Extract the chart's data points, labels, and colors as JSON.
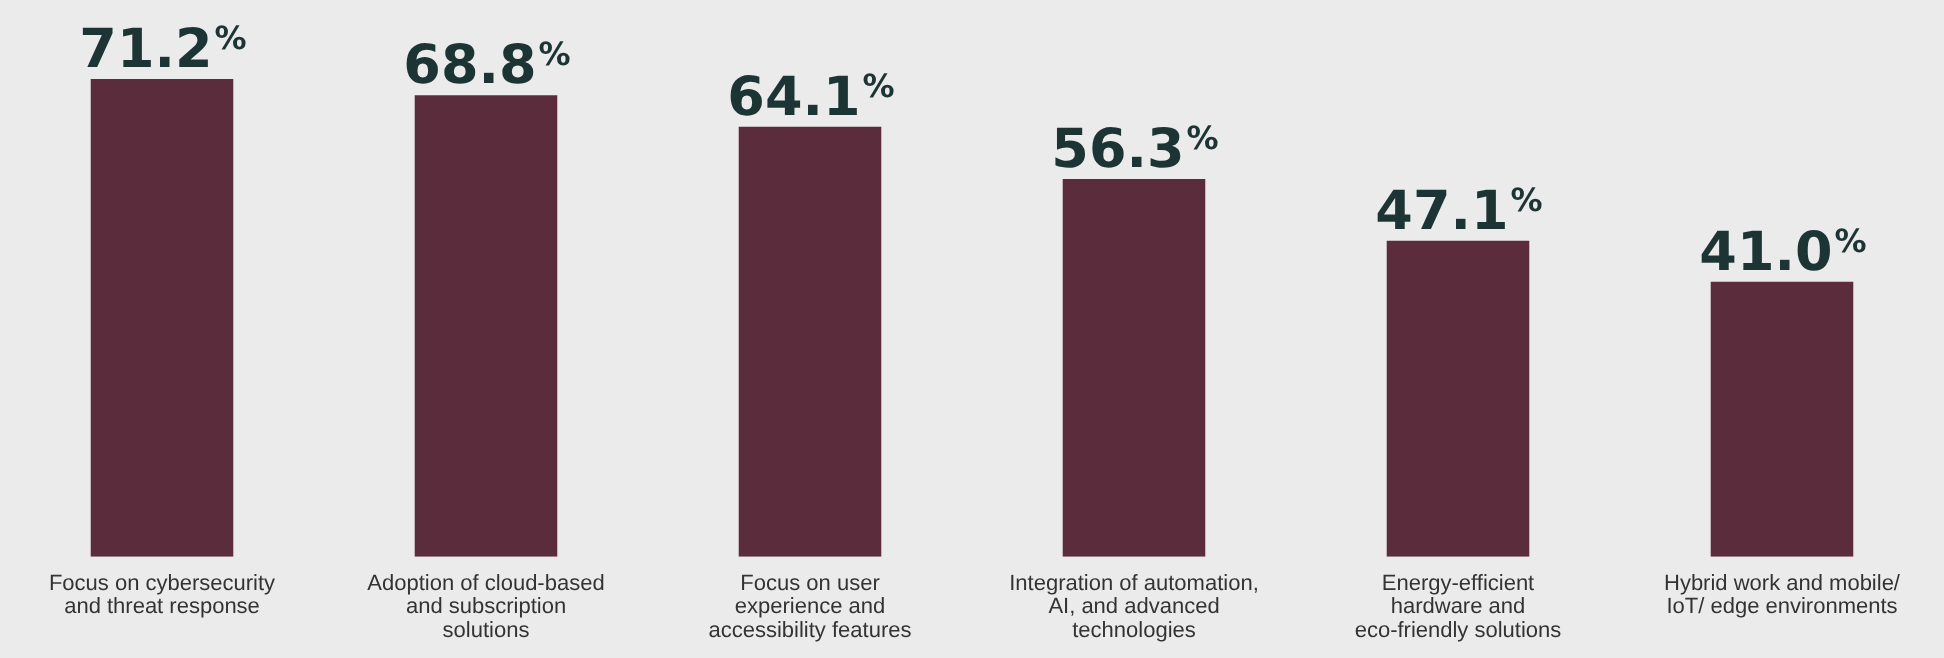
{
  "chart_data": {
    "type": "bar",
    "categories": [
      "Focus on cybersecurity and threat response",
      "Adoption of cloud-based and subscription solutions",
      "Focus on user experience and accessibility features",
      "Integration of automation, AI, and advanced technologies",
      "Energy-efficient hardware and eco-friendly solutions",
      "Hybrid work and mobile/ IoT/ edge environments"
    ],
    "values": [
      71.2,
      68.8,
      64.1,
      56.3,
      47.1,
      41.0
    ],
    "value_labels": [
      "71.2%",
      "68.8%",
      "64.1%",
      "56.3%",
      "47.1%",
      "41.0%"
    ],
    "color": "#5a2c3c",
    "tick_labels": "x",
    "grid": false,
    "legend": false
  }
}
